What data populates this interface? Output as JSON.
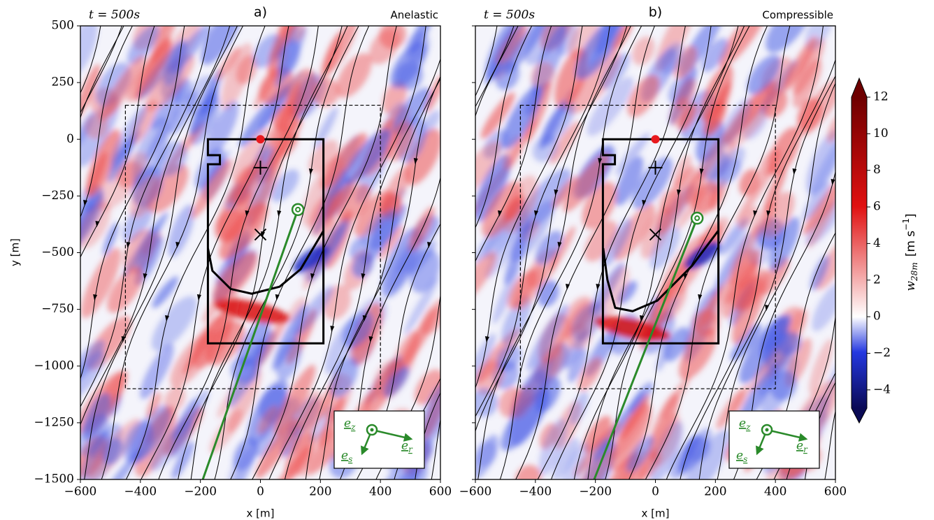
{
  "chart_data": [
    {
      "type": "field",
      "title": "a)",
      "time": "t = 500s",
      "model": "Anelastic",
      "xlabel": "x [m]",
      "ylabel": "y [m]",
      "xlim": [
        -600,
        600
      ],
      "ylim": [
        -1500,
        500
      ],
      "xticks": [
        {
          "value": -600,
          "label": "−600"
        },
        {
          "value": -400,
          "label": "−400"
        },
        {
          "value": -200,
          "label": "−200"
        },
        0,
        200,
        400,
        600
      ],
      "yticks": [
        {
          "value": -1500,
          "label": "−1500"
        },
        {
          "value": -1250,
          "label": "−1250"
        },
        {
          "value": -1000,
          "label": "−1000"
        },
        {
          "value": -750,
          "label": "−750"
        },
        {
          "value": -500,
          "label": "−500"
        },
        {
          "value": -250,
          "label": "−250"
        },
        0,
        250,
        500
      ],
      "ytick_labels": true,
      "dashed_box": {
        "x": [
          -450,
          400
        ],
        "y": [
          -1100,
          150
        ]
      },
      "outline": [
        [
          -175,
          0
        ],
        [
          210,
          0
        ],
        [
          210,
          -900
        ],
        [
          -175,
          -900
        ],
        [
          -175,
          -110
        ],
        [
          -135,
          -110
        ],
        [
          -135,
          -70
        ],
        [
          -175,
          -70
        ]
      ],
      "curve": [
        [
          -175,
          -480
        ],
        [
          -160,
          -580
        ],
        [
          -99,
          -660
        ],
        [
          -29,
          -681
        ],
        [
          64,
          -650
        ],
        [
          134,
          -573
        ],
        [
          210,
          -404
        ]
      ],
      "markers": [
        {
          "x": 0,
          "y": 0,
          "symbol": "dot",
          "color": "#e8191e"
        },
        {
          "x": 0,
          "y": -125,
          "symbol": "plus",
          "color": "#000000"
        },
        {
          "x": 0,
          "y": -420,
          "symbol": "cross",
          "color": "#000000"
        }
      ],
      "probe": {
        "x": 125,
        "y": -310,
        "color": "#2a8a2a"
      },
      "beam_end": {
        "x": -192,
        "y": -1500
      },
      "basis": [
        {
          "symbol": "e",
          "sub": "z"
        },
        {
          "symbol": "e",
          "sub": "r"
        },
        {
          "symbol": "e",
          "sub": "s"
        }
      ]
    },
    {
      "type": "field",
      "title": "b)",
      "time": "t = 500s",
      "model": "Compressible",
      "xlabel": "x [m]",
      "xlim": [
        -600,
        600
      ],
      "ylim": [
        -1500,
        500
      ],
      "xticks": [
        {
          "value": -600,
          "label": "−600"
        },
        {
          "value": -400,
          "label": "−400"
        },
        {
          "value": -200,
          "label": "−200"
        },
        0,
        200,
        400,
        600
      ],
      "yticks": [
        -1500,
        -1250,
        -1000,
        -750,
        -500,
        -250,
        0,
        250,
        500
      ],
      "ytick_labels": false,
      "dashed_box": {
        "x": [
          -450,
          400
        ],
        "y": [
          -1100,
          150
        ]
      },
      "outline": [
        [
          -175,
          0
        ],
        [
          210,
          0
        ],
        [
          210,
          -900
        ],
        [
          -175,
          -900
        ],
        [
          -175,
          -110
        ],
        [
          -135,
          -110
        ],
        [
          -135,
          -70
        ],
        [
          -175,
          -70
        ]
      ],
      "curve": [
        [
          -174,
          -480
        ],
        [
          -160,
          -620
        ],
        [
          -134,
          -743
        ],
        [
          -76,
          -758
        ],
        [
          6,
          -712
        ],
        [
          122,
          -558
        ],
        [
          209,
          -404
        ]
      ],
      "markers": [
        {
          "x": 0,
          "y": 0,
          "symbol": "dot",
          "color": "#e8191e"
        },
        {
          "x": 0,
          "y": -125,
          "symbol": "plus",
          "color": "#000000"
        },
        {
          "x": 0,
          "y": -420,
          "symbol": "cross",
          "color": "#000000"
        }
      ],
      "probe": {
        "x": 139,
        "y": -348,
        "color": "#2a8a2a"
      },
      "beam_end": {
        "x": -204,
        "y": -1500
      },
      "basis": [
        {
          "symbol": "e",
          "sub": "z"
        },
        {
          "symbol": "e",
          "sub": "r"
        },
        {
          "symbol": "e",
          "sub": "s"
        }
      ]
    },
    {
      "type": "colorbar",
      "symbol": "w",
      "symbol_sub": "28m",
      "unit": "[m s",
      "unit_sup": "−1",
      "unit_end": "]",
      "ylim": [
        -5,
        12
      ],
      "yticks": [
        {
          "value": -4,
          "label": "−4"
        },
        {
          "value": -2,
          "label": "−2"
        },
        0,
        2,
        4,
        6,
        8,
        10,
        12
      ]
    }
  ]
}
